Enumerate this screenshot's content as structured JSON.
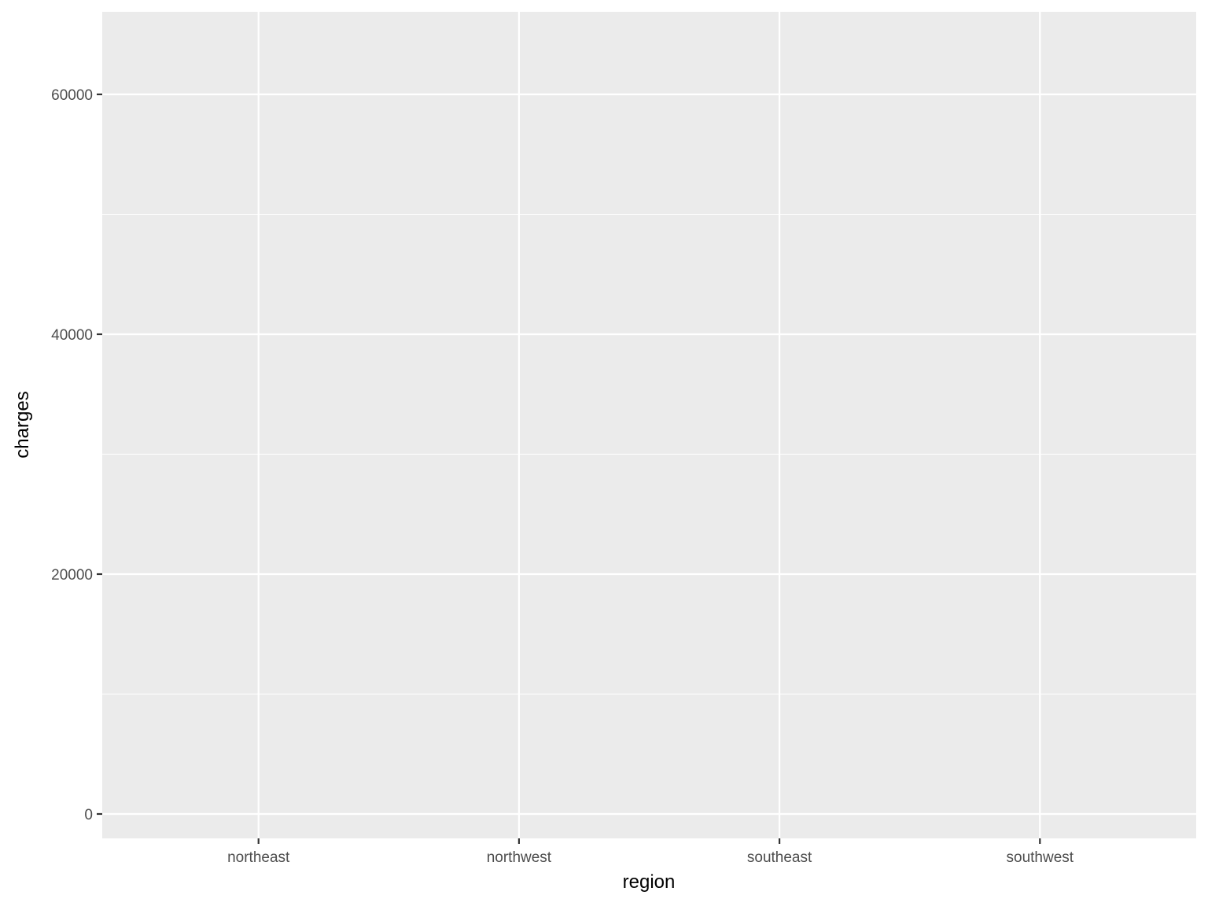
{
  "chart_data": {
    "type": "boxplot",
    "title": "",
    "xlabel": "region",
    "ylabel": "charges",
    "categories": [
      "northeast",
      "northwest",
      "southeast",
      "southwest"
    ],
    "values": [],
    "ylim": [
      -2033,
      66885
    ],
    "yticks": [
      0,
      20000,
      40000,
      60000
    ],
    "ytick_labels": [
      "0",
      "20000",
      "40000",
      "60000"
    ],
    "grid": true,
    "panel_background": "#ebebeb",
    "grid_color": "#ffffff"
  }
}
